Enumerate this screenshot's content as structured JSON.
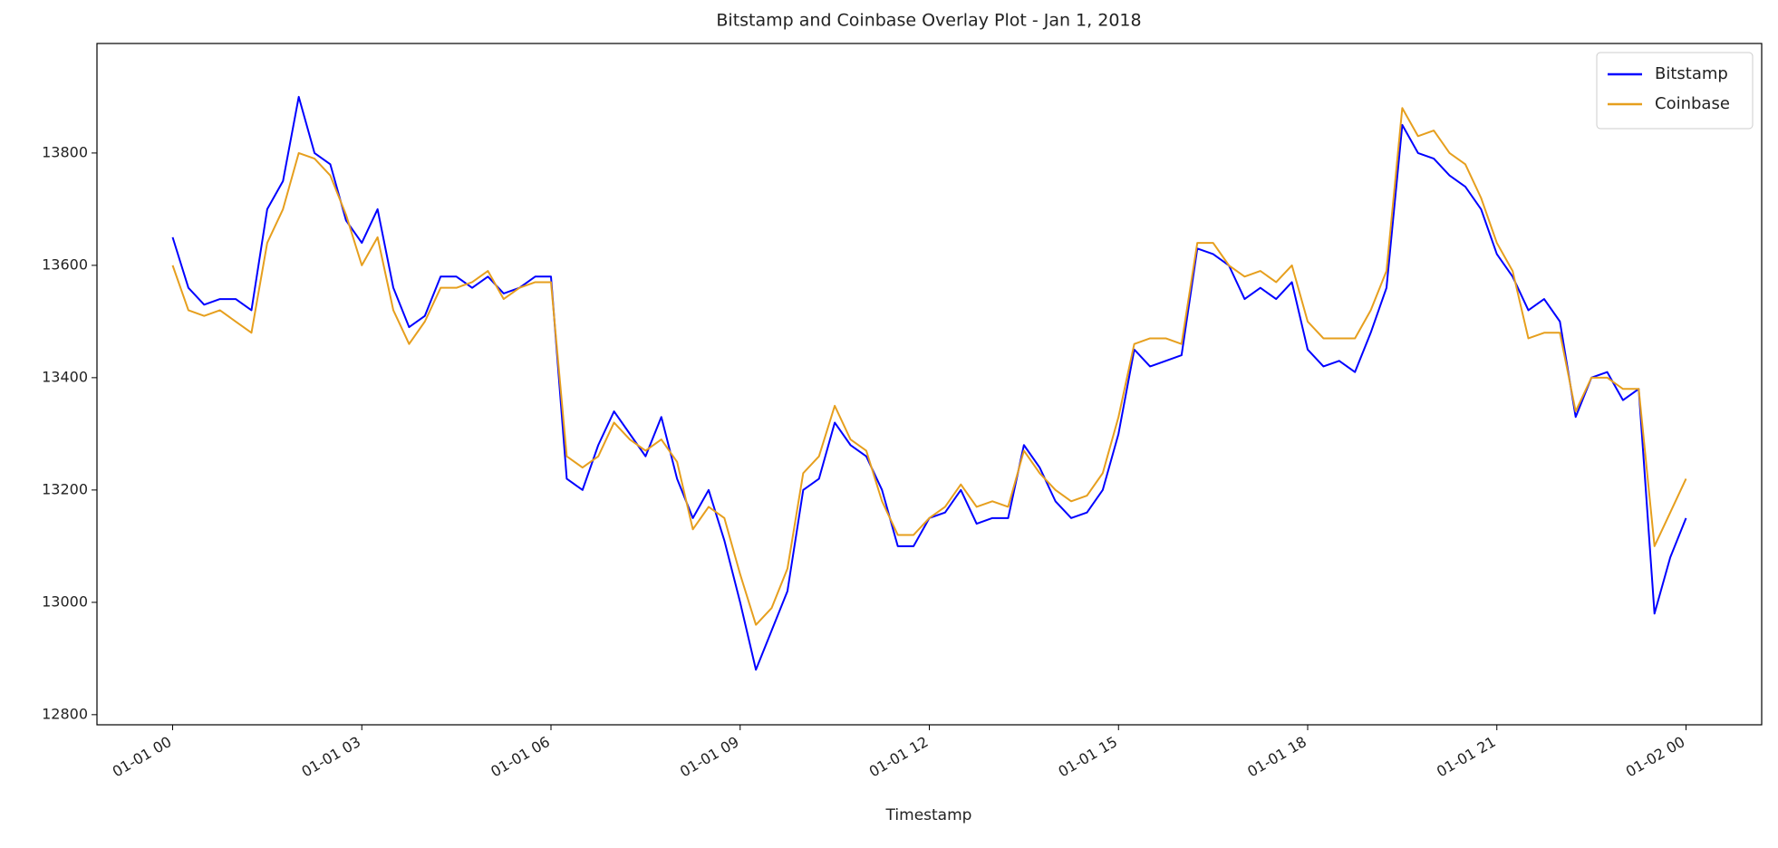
{
  "chart_data": {
    "type": "line",
    "title": "Bitstamp and Coinbase Overlay Plot - Jan 1, 2018",
    "x_label": "Timestamp",
    "x": [
      0,
      0.25,
      0.5,
      0.75,
      1,
      1.25,
      1.5,
      1.75,
      2,
      2.25,
      2.5,
      2.75,
      3,
      3.25,
      3.5,
      3.75,
      4,
      4.25,
      4.5,
      4.75,
      5,
      5.25,
      5.5,
      5.75,
      6,
      6.25,
      6.5,
      6.75,
      7,
      7.25,
      7.5,
      7.75,
      8,
      8.25,
      8.5,
      8.75,
      9,
      9.25,
      9.5,
      9.75,
      10,
      10.25,
      10.5,
      10.75,
      11,
      11.25,
      11.5,
      11.75,
      12,
      12.25,
      12.5,
      12.75,
      13,
      13.25,
      13.5,
      13.75,
      14,
      14.25,
      14.5,
      14.75,
      15,
      15.25,
      15.5,
      15.75,
      16,
      16.25,
      16.5,
      16.75,
      17,
      17.25,
      17.5,
      17.75,
      18,
      18.25,
      18.5,
      18.75,
      19,
      19.25,
      19.5,
      19.75,
      20,
      20.25,
      20.5,
      20.75,
      21,
      21.25,
      21.5,
      21.75,
      22,
      22.25,
      22.5,
      22.75,
      23,
      23.25,
      23.5,
      23.75,
      24
    ],
    "series": [
      {
        "name": "Bitstamp",
        "color": "#0000ff",
        "values": [
          13650,
          13560,
          13530,
          13540,
          13540,
          13520,
          13700,
          13750,
          13900,
          13800,
          13780,
          13680,
          13640,
          13700,
          13560,
          13490,
          13510,
          13580,
          13580,
          13560,
          13580,
          13550,
          13560,
          13580,
          13580,
          13220,
          13200,
          13280,
          13340,
          13300,
          13260,
          13330,
          13220,
          13150,
          13200,
          13110,
          13000,
          12880,
          12950,
          13020,
          13200,
          13220,
          13320,
          13280,
          13260,
          13200,
          13100,
          13100,
          13150,
          13160,
          13200,
          13140,
          13150,
          13150,
          13280,
          13240,
          13180,
          13150,
          13160,
          13200,
          13300,
          13450,
          13420,
          13430,
          13440,
          13630,
          13620,
          13600,
          13540,
          13560,
          13540,
          13570,
          13450,
          13420,
          13430,
          13410,
          13480,
          13560,
          13850,
          13800,
          13790,
          13760,
          13740,
          13700,
          13620,
          13580,
          13520,
          13540,
          13500,
          13330,
          13400,
          13410,
          13360,
          13380,
          12980,
          13080,
          13150
        ]
      },
      {
        "name": "Coinbase",
        "color": "#e69f1e",
        "values": [
          13600,
          13520,
          13510,
          13520,
          13500,
          13480,
          13640,
          13700,
          13800,
          13790,
          13760,
          13690,
          13600,
          13650,
          13520,
          13460,
          13500,
          13560,
          13560,
          13570,
          13590,
          13540,
          13560,
          13570,
          13570,
          13260,
          13240,
          13260,
          13320,
          13290,
          13270,
          13290,
          13250,
          13130,
          13170,
          13150,
          13050,
          12960,
          12990,
          13060,
          13230,
          13260,
          13350,
          13290,
          13270,
          13180,
          13120,
          13120,
          13150,
          13170,
          13210,
          13170,
          13180,
          13170,
          13270,
          13230,
          13200,
          13180,
          13190,
          13230,
          13330,
          13460,
          13470,
          13470,
          13460,
          13640,
          13640,
          13600,
          13580,
          13590,
          13570,
          13600,
          13500,
          13470,
          13470,
          13470,
          13520,
          13590,
          13880,
          13830,
          13840,
          13800,
          13780,
          13720,
          13640,
          13590,
          13470,
          13480,
          13480,
          13340,
          13400,
          13400,
          13380,
          13380,
          13100,
          13160,
          13220
        ]
      }
    ],
    "xlim": [
      -1.2,
      25.2
    ],
    "xticks": [
      {
        "value": 0,
        "label": "01-01 00"
      },
      {
        "value": 3,
        "label": "01-01 03"
      },
      {
        "value": 6,
        "label": "01-01 06"
      },
      {
        "value": 9,
        "label": "01-01 09"
      },
      {
        "value": 12,
        "label": "01-01 12"
      },
      {
        "value": 15,
        "label": "01-01 15"
      },
      {
        "value": 18,
        "label": "01-01 18"
      },
      {
        "value": 21,
        "label": "01-01 21"
      },
      {
        "value": 24,
        "label": "01-02 00"
      }
    ],
    "ylim": [
      12782,
      13995
    ],
    "yticks": [
      12800,
      13000,
      13200,
      13400,
      13600,
      13800
    ],
    "grid": false,
    "legend": "upper right"
  }
}
